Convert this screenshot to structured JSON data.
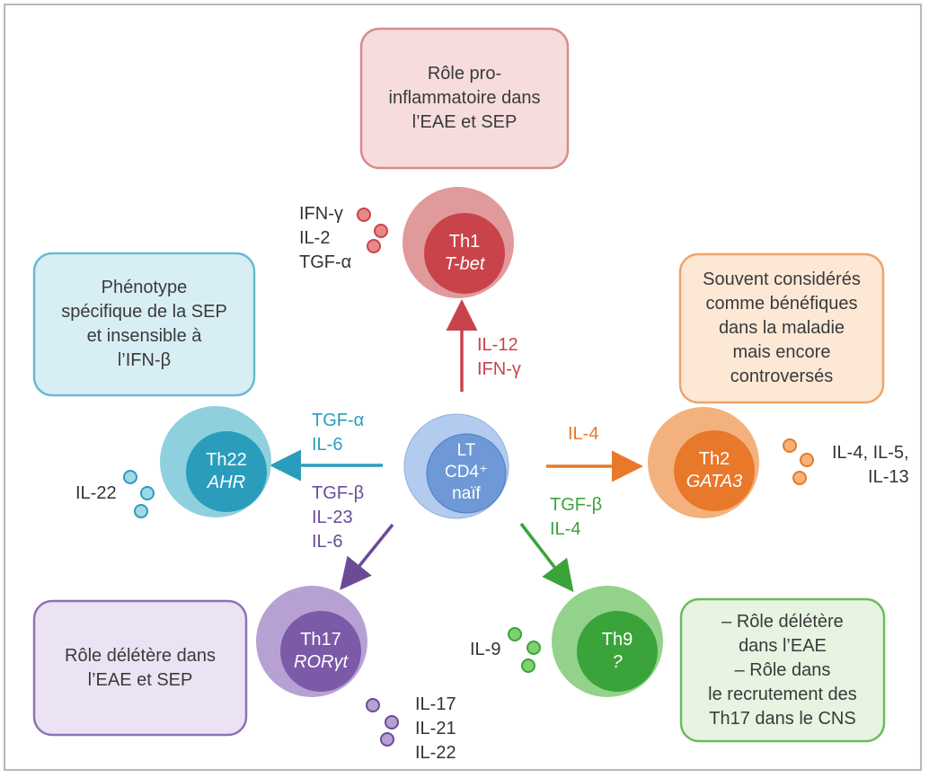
{
  "colors": {
    "th1": "#c9444a",
    "th1_outer": "#e19a9b",
    "th2": "#e8782a",
    "th2_outer": "#f3b27d",
    "th22": "#2a9dbd",
    "th22_outer": "#8fd0df",
    "th17": "#7b5aa8",
    "th17_outer": "#b7a1d2",
    "th9": "#3aa43a",
    "th9_outer": "#93d28b",
    "naive": "#6e98d6",
    "naive_outer": "#b3cbee"
  },
  "boxes": {
    "th1": "Rôle pro-\ninflammatoire dans\nl’EAE et SEP",
    "th22": "Phénotype\nspécifique de la SEP\net insensible à\nl’IFN-β",
    "th2": "Souvent considérés\ncomme bénéfiques\ndans la maladie\nmais encore\ncontroversés",
    "th17": "Rôle délétère dans\nl’EAE et SEP",
    "th9": "– Rôle délétère\ndans l’EAE\n– Rôle dans\nle recrutement des\nTh17 dans le CNS"
  },
  "cells": {
    "naive": {
      "line1": "LT",
      "line2": "CD4⁺",
      "line3": "naïf"
    },
    "th1": {
      "name": "Th1",
      "factor": "T-bet"
    },
    "th2": {
      "name": "Th2",
      "factor": "GATA3"
    },
    "th22": {
      "name": "Th22",
      "factor": "AHR"
    },
    "th17": {
      "name": "Th17",
      "factor": "RORγt"
    },
    "th9": {
      "name": "Th9",
      "factor": "?"
    }
  },
  "inducers": {
    "th1": "IL-12\nIFN-γ",
    "th2": "IL-4",
    "th22": "TGF-α\nIL-6",
    "th17": "TGF-β\nIL-23\nIL-6",
    "th9": "TGF-β\nIL-4"
  },
  "cytokines": {
    "th1": "IFN-γ\nIL-2\nTGF-α",
    "th2": "IL-4, IL-5,\nIL-13",
    "th22": "IL-22",
    "th17": "IL-17\nIL-21\nIL-22",
    "th9": "IL-9"
  }
}
